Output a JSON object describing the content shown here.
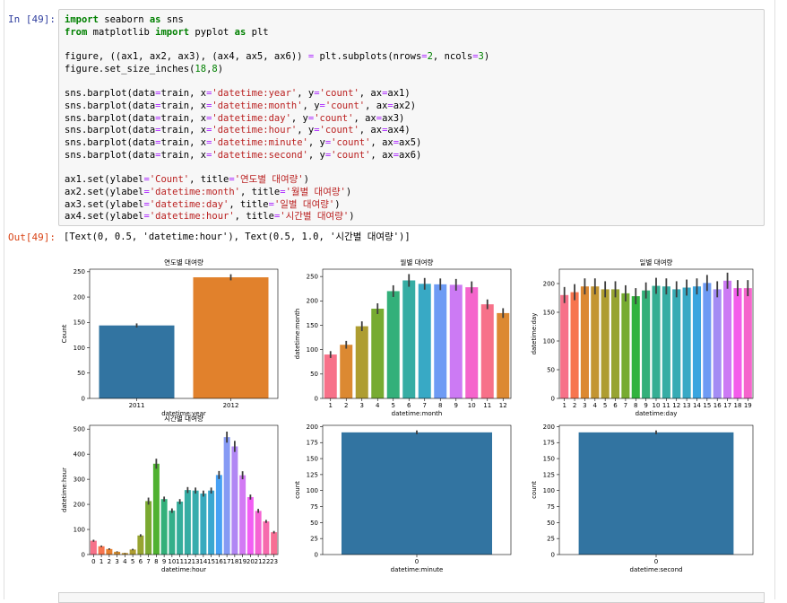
{
  "cell": {
    "in_prompt": "In [49]:",
    "out_prompt": "Out[49]:",
    "output_text": "[Text(0, 0.5, 'datetime:hour'), Text(0.5, 1.0, '시간별 대여량')]"
  },
  "code_lines": [
    [
      {
        "t": "import",
        "c": "kw"
      },
      {
        "t": " seaborn "
      },
      {
        "t": "as",
        "c": "kw"
      },
      {
        "t": " sns"
      }
    ],
    [
      {
        "t": "from",
        "c": "kw"
      },
      {
        "t": " matplotlib "
      },
      {
        "t": "import",
        "c": "kw"
      },
      {
        "t": " pyplot "
      },
      {
        "t": "as",
        "c": "kw"
      },
      {
        "t": " plt"
      }
    ],
    [],
    [
      {
        "t": "figure, ((ax1, ax2, ax3), (ax4, ax5, ax6)) "
      },
      {
        "t": "=",
        "c": "op"
      },
      {
        "t": " plt.subplots(nrows"
      },
      {
        "t": "=",
        "c": "op"
      },
      {
        "t": "2",
        "c": "num"
      },
      {
        "t": ", ncols"
      },
      {
        "t": "=",
        "c": "op"
      },
      {
        "t": "3",
        "c": "num"
      },
      {
        "t": ")"
      }
    ],
    [
      {
        "t": "figure.set_size_inches("
      },
      {
        "t": "18",
        "c": "num"
      },
      {
        "t": ","
      },
      {
        "t": "8",
        "c": "num"
      },
      {
        "t": ")"
      }
    ],
    [],
    [
      {
        "t": "sns.barplot(data"
      },
      {
        "t": "=",
        "c": "op"
      },
      {
        "t": "train, x"
      },
      {
        "t": "=",
        "c": "op"
      },
      {
        "t": "'datetime:year'",
        "c": "st"
      },
      {
        "t": ", y"
      },
      {
        "t": "=",
        "c": "op"
      },
      {
        "t": "'count'",
        "c": "st"
      },
      {
        "t": ", ax"
      },
      {
        "t": "=",
        "c": "op"
      },
      {
        "t": "ax1)"
      }
    ],
    [
      {
        "t": "sns.barplot(data"
      },
      {
        "t": "=",
        "c": "op"
      },
      {
        "t": "train, x"
      },
      {
        "t": "=",
        "c": "op"
      },
      {
        "t": "'datetime:month'",
        "c": "st"
      },
      {
        "t": ", y"
      },
      {
        "t": "=",
        "c": "op"
      },
      {
        "t": "'count'",
        "c": "st"
      },
      {
        "t": ", ax"
      },
      {
        "t": "=",
        "c": "op"
      },
      {
        "t": "ax2)"
      }
    ],
    [
      {
        "t": "sns.barplot(data"
      },
      {
        "t": "=",
        "c": "op"
      },
      {
        "t": "train, x"
      },
      {
        "t": "=",
        "c": "op"
      },
      {
        "t": "'datetime:day'",
        "c": "st"
      },
      {
        "t": ", y"
      },
      {
        "t": "=",
        "c": "op"
      },
      {
        "t": "'count'",
        "c": "st"
      },
      {
        "t": ", ax"
      },
      {
        "t": "=",
        "c": "op"
      },
      {
        "t": "ax3)"
      }
    ],
    [
      {
        "t": "sns.barplot(data"
      },
      {
        "t": "=",
        "c": "op"
      },
      {
        "t": "train, x"
      },
      {
        "t": "=",
        "c": "op"
      },
      {
        "t": "'datetime:hour'",
        "c": "st"
      },
      {
        "t": ", y"
      },
      {
        "t": "=",
        "c": "op"
      },
      {
        "t": "'count'",
        "c": "st"
      },
      {
        "t": ", ax"
      },
      {
        "t": "=",
        "c": "op"
      },
      {
        "t": "ax4)"
      }
    ],
    [
      {
        "t": "sns.barplot(data"
      },
      {
        "t": "=",
        "c": "op"
      },
      {
        "t": "train, x"
      },
      {
        "t": "=",
        "c": "op"
      },
      {
        "t": "'datetime:minute'",
        "c": "st"
      },
      {
        "t": ", y"
      },
      {
        "t": "=",
        "c": "op"
      },
      {
        "t": "'count'",
        "c": "st"
      },
      {
        "t": ", ax"
      },
      {
        "t": "=",
        "c": "op"
      },
      {
        "t": "ax5)"
      }
    ],
    [
      {
        "t": "sns.barplot(data"
      },
      {
        "t": "=",
        "c": "op"
      },
      {
        "t": "train, x"
      },
      {
        "t": "=",
        "c": "op"
      },
      {
        "t": "'datetime:second'",
        "c": "st"
      },
      {
        "t": ", y"
      },
      {
        "t": "=",
        "c": "op"
      },
      {
        "t": "'count'",
        "c": "st"
      },
      {
        "t": ", ax"
      },
      {
        "t": "=",
        "c": "op"
      },
      {
        "t": "ax6)"
      }
    ],
    [],
    [
      {
        "t": "ax1.set(ylabel"
      },
      {
        "t": "=",
        "c": "op"
      },
      {
        "t": "'Count'",
        "c": "st"
      },
      {
        "t": ", title"
      },
      {
        "t": "=",
        "c": "op"
      },
      {
        "t": "'연도별 대여량'",
        "c": "st"
      },
      {
        "t": ")"
      }
    ],
    [
      {
        "t": "ax2.set(ylabel"
      },
      {
        "t": "=",
        "c": "op"
      },
      {
        "t": "'datetime:month'",
        "c": "st"
      },
      {
        "t": ", title"
      },
      {
        "t": "=",
        "c": "op"
      },
      {
        "t": "'월별 대여량'",
        "c": "st"
      },
      {
        "t": ")"
      }
    ],
    [
      {
        "t": "ax3.set(ylabel"
      },
      {
        "t": "=",
        "c": "op"
      },
      {
        "t": "'datetime:day'",
        "c": "st"
      },
      {
        "t": ", title"
      },
      {
        "t": "=",
        "c": "op"
      },
      {
        "t": "'일별 대여량'",
        "c": "st"
      },
      {
        "t": ")"
      }
    ],
    [
      {
        "t": "ax4.set(ylabel"
      },
      {
        "t": "=",
        "c": "op"
      },
      {
        "t": "'datetime:hour'",
        "c": "st"
      },
      {
        "t": ", title"
      },
      {
        "t": "=",
        "c": "op"
      },
      {
        "t": "'시간별 대여량'",
        "c": "st"
      },
      {
        "t": ")"
      }
    ]
  ],
  "chart_data": [
    {
      "id": "ax1",
      "type": "bar",
      "title": "연도별 대여량",
      "xlabel": "datetime:year",
      "ylabel": "Count",
      "categories": [
        "2011",
        "2012"
      ],
      "values": [
        144,
        239
      ],
      "errors": [
        4,
        6
      ],
      "ylim": [
        0,
        255
      ],
      "yticks": [
        0,
        50,
        100,
        150,
        200,
        250
      ],
      "palette": [
        "#3274a1",
        "#e1812c"
      ]
    },
    {
      "id": "ax2",
      "type": "bar",
      "title": "월별 대여량",
      "xlabel": "datetime:month",
      "ylabel": "datetime:month",
      "categories": [
        "1",
        "2",
        "3",
        "4",
        "5",
        "6",
        "7",
        "8",
        "9",
        "10",
        "11",
        "12"
      ],
      "values": [
        90,
        110,
        148,
        184,
        220,
        242,
        235,
        234,
        233,
        228,
        193,
        175
      ],
      "errors": [
        7,
        8,
        10,
        11,
        12,
        13,
        12,
        12,
        12,
        12,
        10,
        10
      ],
      "ylim": [
        0,
        265
      ],
      "yticks": [
        0,
        50,
        100,
        150,
        200,
        250
      ],
      "palette": [
        "#f77189",
        "#dc8932",
        "#ae9d31",
        "#77ab31",
        "#33b07a",
        "#36ada4",
        "#38a9c5",
        "#6e9bf4",
        "#cc7af4",
        "#f565cc",
        "#f77189",
        "#dc8932"
      ]
    },
    {
      "id": "ax3",
      "type": "bar",
      "title": "일별 대여량",
      "xlabel": "datetime:day",
      "ylabel": "datetime:day",
      "categories": [
        "1",
        "2",
        "3",
        "4",
        "5",
        "6",
        "7",
        "8",
        "9",
        "10",
        "11",
        "12",
        "13",
        "14",
        "15",
        "16",
        "17",
        "18",
        "19"
      ],
      "values": [
        180,
        185,
        195,
        195,
        190,
        190,
        183,
        178,
        188,
        196,
        195,
        190,
        193,
        195,
        201,
        190,
        205,
        192,
        192
      ],
      "errors": [
        14,
        14,
        14,
        14,
        14,
        14,
        14,
        14,
        14,
        14,
        14,
        14,
        14,
        14,
        14,
        14,
        14,
        14,
        14
      ],
      "ylim": [
        0,
        225
      ],
      "yticks": [
        0,
        50,
        100,
        150,
        200
      ],
      "palette": [
        "#f77189",
        "#f7754f",
        "#dc8932",
        "#c39532",
        "#ae9d31",
        "#97a431",
        "#77ab31",
        "#31b33e",
        "#33b07a",
        "#35ae93",
        "#36ada4",
        "#37abb4",
        "#38a9c5",
        "#3aa5df",
        "#6e9bf4",
        "#a48cf4",
        "#cc7af4",
        "#f45deb",
        "#f565cc"
      ]
    },
    {
      "id": "ax4",
      "type": "bar",
      "title": "시간별 대여량",
      "xlabel": "datetime:hour",
      "ylabel": "datetime:hour",
      "categories": [
        "0",
        "1",
        "2",
        "3",
        "4",
        "5",
        "6",
        "7",
        "8",
        "9",
        "10",
        "11",
        "12",
        "13",
        "14",
        "15",
        "16",
        "17",
        "18",
        "19",
        "20",
        "21",
        "22",
        "23"
      ],
      "values": [
        55,
        33,
        22,
        11,
        6,
        20,
        76,
        213,
        362,
        221,
        175,
        211,
        257,
        255,
        243,
        255,
        317,
        468,
        431,
        316,
        229,
        174,
        132,
        89
      ],
      "errors": [
        4,
        3,
        3,
        2,
        1,
        3,
        5,
        14,
        20,
        10,
        9,
        10,
        12,
        12,
        12,
        12,
        16,
        22,
        22,
        16,
        10,
        8,
        6,
        5
      ],
      "ylim": [
        0,
        515
      ],
      "yticks": [
        0,
        100,
        200,
        300,
        400,
        500
      ],
      "palette": [
        "#f77189",
        "#f7754f",
        "#e7802f",
        "#d18d32",
        "#c19532",
        "#ae9d31",
        "#97a431",
        "#7ba931",
        "#50b131",
        "#33b07a",
        "#34af8a",
        "#35ad9b",
        "#36ada4",
        "#37acad",
        "#38aabe",
        "#39a7d0",
        "#47a1f4",
        "#869af4",
        "#b187f4",
        "#d27af4",
        "#f25ff4",
        "#f564d4",
        "#f66bad",
        "#f76f94"
      ]
    },
    {
      "id": "ax5",
      "type": "bar",
      "title": "",
      "xlabel": "datetime:minute",
      "ylabel": "count",
      "categories": [
        "0"
      ],
      "values": [
        191
      ],
      "errors": [
        3
      ],
      "ylim": [
        0,
        202
      ],
      "yticks": [
        0,
        25,
        50,
        75,
        100,
        125,
        150,
        175,
        200
      ],
      "palette": [
        "#3274a1"
      ]
    },
    {
      "id": "ax6",
      "type": "bar",
      "title": "",
      "xlabel": "datetime:second",
      "ylabel": "count",
      "categories": [
        "0"
      ],
      "values": [
        191
      ],
      "errors": [
        3
      ],
      "ylim": [
        0,
        202
      ],
      "yticks": [
        0,
        25,
        50,
        75,
        100,
        125,
        150,
        175,
        200
      ],
      "palette": [
        "#3274a1"
      ]
    }
  ]
}
